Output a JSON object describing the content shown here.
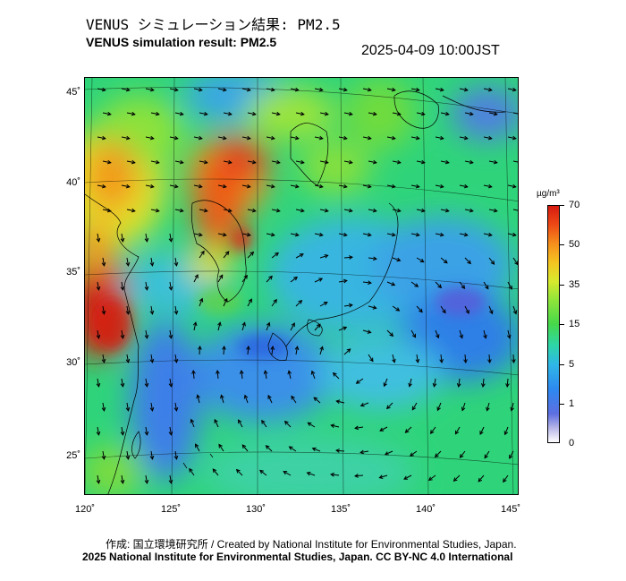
{
  "header": {
    "title_ja": "VENUS シミュレーション結果: PM2.5",
    "title_en": "VENUS simulation result: PM2.5",
    "timestamp": "2025-04-09 10:00JST"
  },
  "axes": {
    "lat_labels": [
      "45˚",
      "40˚",
      "35˚",
      "30˚",
      "25˚"
    ],
    "lon_labels": [
      "120˚",
      "125˚",
      "130˚",
      "135˚",
      "140˚",
      "145˚"
    ],
    "lat_range": [
      23,
      46
    ],
    "lon_range": [
      120,
      145.5
    ]
  },
  "colorbar": {
    "unit": "µg/m³",
    "labels": [
      "70",
      "50",
      "35",
      "15",
      "5",
      "1",
      "0"
    ],
    "colors": [
      "#ffffff",
      "#5e6fe0",
      "#2fb8e6",
      "#46d84a",
      "#d7ea2e",
      "#f58f1c",
      "#d61a10"
    ]
  },
  "footer": {
    "credit_line1": "作成: 国立環境研究所 / Created by National Institute for Environmental Studies, Japan.",
    "credit_line2": "2025 National Institute for Environmental Studies, Japan. CC BY-NC 4.0 International"
  }
}
